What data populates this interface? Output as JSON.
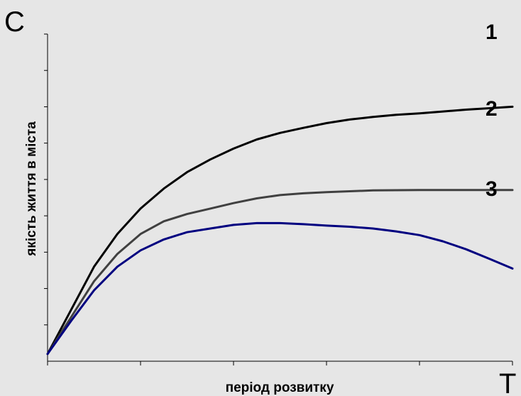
{
  "chart_data": {
    "type": "line",
    "y_axis_letter": "C",
    "x_axis_letter": "T",
    "xlabel": "період розвитку",
    "ylabel": "якість життя в міста",
    "xlim": [
      0,
      10
    ],
    "ylim": [
      0,
      9
    ],
    "grid": false,
    "series": [
      {
        "name": "1",
        "color": "#000000",
        "points": [
          [
            0,
            0.2
          ],
          [
            0.5,
            1.4
          ],
          [
            1,
            2.6
          ],
          [
            1.5,
            3.5
          ],
          [
            2,
            4.2
          ],
          [
            2.5,
            4.75
          ],
          [
            3,
            5.2
          ],
          [
            3.5,
            5.55
          ],
          [
            4,
            5.85
          ],
          [
            4.5,
            6.1
          ],
          [
            5,
            6.28
          ],
          [
            5.5,
            6.42
          ],
          [
            6,
            6.55
          ],
          [
            6.5,
            6.65
          ],
          [
            7,
            6.72
          ],
          [
            7.5,
            6.78
          ],
          [
            8,
            6.82
          ],
          [
            8.5,
            6.87
          ],
          [
            9,
            6.92
          ],
          [
            9.5,
            6.96
          ],
          [
            10,
            7.0
          ]
        ]
      },
      {
        "name": "2",
        "color": "#404040",
        "points": [
          [
            0,
            0.2
          ],
          [
            0.5,
            1.2
          ],
          [
            1,
            2.2
          ],
          [
            1.5,
            2.95
          ],
          [
            2,
            3.5
          ],
          [
            2.5,
            3.85
          ],
          [
            3,
            4.05
          ],
          [
            3.5,
            4.2
          ],
          [
            4,
            4.35
          ],
          [
            4.5,
            4.48
          ],
          [
            5,
            4.57
          ],
          [
            5.5,
            4.62
          ],
          [
            6,
            4.65
          ],
          [
            7,
            4.7
          ],
          [
            8,
            4.71
          ],
          [
            9,
            4.71
          ],
          [
            10,
            4.71
          ]
        ]
      },
      {
        "name": "3",
        "color": "#000080",
        "points": [
          [
            0,
            0.2
          ],
          [
            0.5,
            1.1
          ],
          [
            1,
            1.95
          ],
          [
            1.5,
            2.6
          ],
          [
            2,
            3.05
          ],
          [
            2.5,
            3.35
          ],
          [
            3,
            3.55
          ],
          [
            3.5,
            3.65
          ],
          [
            4,
            3.75
          ],
          [
            4.5,
            3.8
          ],
          [
            5,
            3.8
          ],
          [
            5.5,
            3.77
          ],
          [
            6,
            3.73
          ],
          [
            6.5,
            3.7
          ],
          [
            7,
            3.65
          ],
          [
            7.5,
            3.57
          ],
          [
            8,
            3.47
          ],
          [
            8.5,
            3.3
          ],
          [
            9,
            3.08
          ],
          [
            9.5,
            2.82
          ],
          [
            10,
            2.55
          ]
        ]
      }
    ],
    "y_tick_count": 9,
    "x_tick_count": 5
  }
}
